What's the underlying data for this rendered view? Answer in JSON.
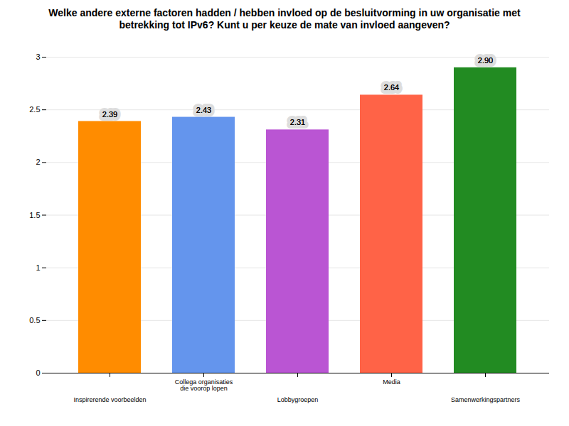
{
  "chart_data": {
    "type": "bar",
    "title": "Welke andere externe factoren hadden / hebben invloed op de besluitvorming in uw organisatie met betrekking tot IPv6? Kunt u per keuze de mate van invloed aangeven?",
    "categories": [
      "Inspirerende voorbeelden",
      "Collega organisaties die voorop lopen",
      "Lobbygroepen",
      "Media",
      "Samenwerkingspartners"
    ],
    "values": [
      2.39,
      2.43,
      2.31,
      2.64,
      2.9
    ],
    "value_labels": [
      "2.39",
      "2.43",
      "2.31",
      "2.64",
      "2.90"
    ],
    "colors": [
      "#ff8c00",
      "#6495ed",
      "#ba55d3",
      "#ff6347",
      "#228b22"
    ],
    "ylim": [
      0,
      3
    ],
    "yticks": [
      0,
      0.5,
      1,
      1.5,
      2,
      2.5,
      3
    ],
    "grid": true,
    "data_labels": true
  }
}
